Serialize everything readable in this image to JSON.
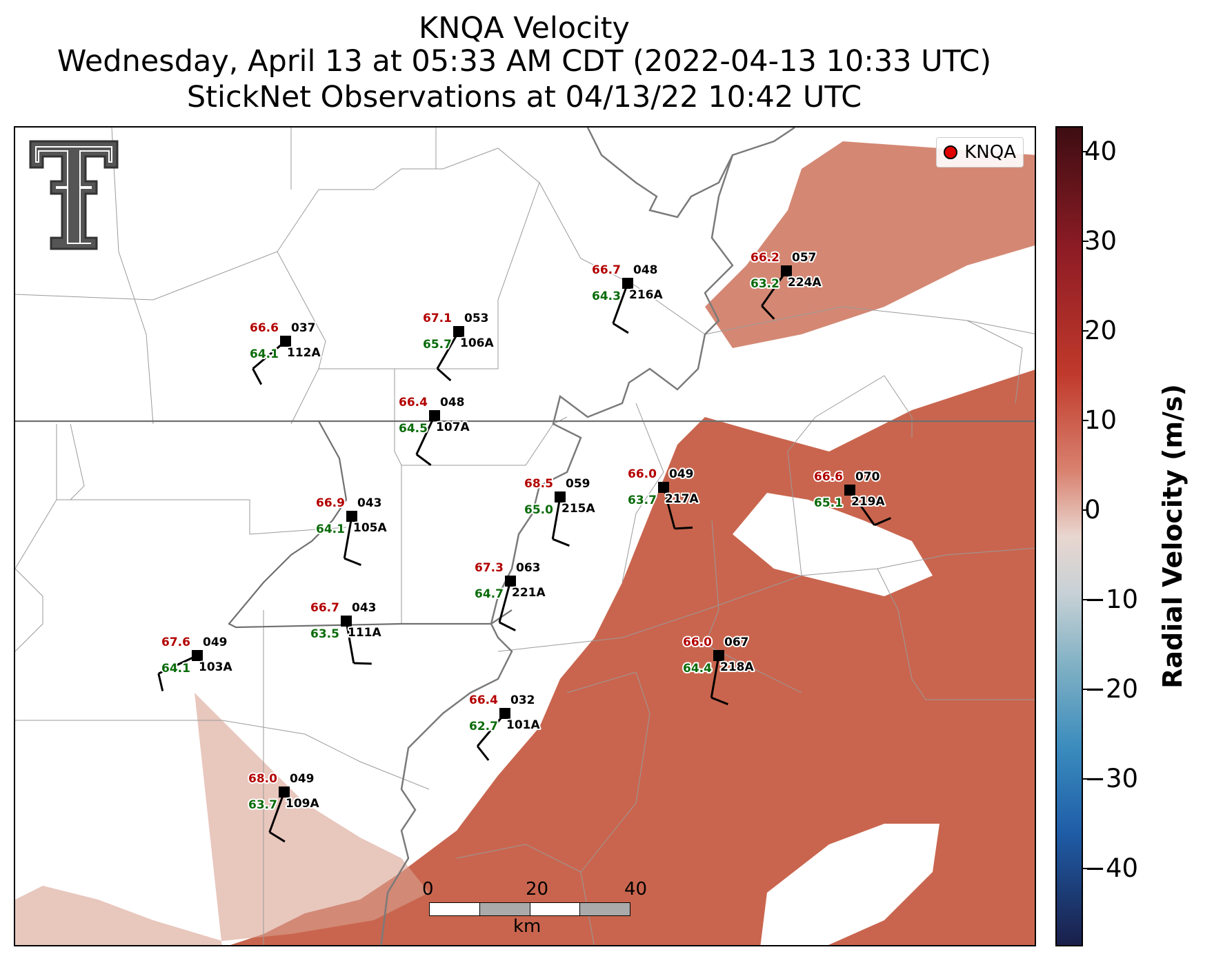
{
  "title": {
    "line1": "KNQA Velocity",
    "line2": "Wednesday, April 13 at 05:33 AM CDT (2022-04-13 10:33 UTC)",
    "line3": "StickNet Observations at 04/13/22 10:42 UTC"
  },
  "legend": {
    "label": "KNQA"
  },
  "colorbar": {
    "label": "Radial Velocity (m/s)",
    "ticks": [
      "40",
      "30",
      "20",
      "10",
      "0",
      "−10",
      "−20",
      "−30",
      "−40"
    ],
    "range": [
      -45,
      45
    ]
  },
  "scale_bar": {
    "ticks": [
      "0",
      "20",
      "40"
    ],
    "unit": "km"
  },
  "stations": [
    {
      "id": "037",
      "name": "112A",
      "temp": "66.6",
      "dew": "64.1"
    },
    {
      "id": "053",
      "name": "106A",
      "temp": "67.1",
      "dew": "65.7"
    },
    {
      "id": "048",
      "name": "216A",
      "temp": "66.7",
      "dew": "64.3"
    },
    {
      "id": "057",
      "name": "224A",
      "temp": "66.2",
      "dew": "63.2"
    },
    {
      "id": "048",
      "name": "107A",
      "temp": "66.4",
      "dew": "64.5"
    },
    {
      "id": "059",
      "name": "215A",
      "temp": "68.5",
      "dew": "65.0"
    },
    {
      "id": "049",
      "name": "217A",
      "temp": "66.0",
      "dew": "63.7"
    },
    {
      "id": "070",
      "name": "219A",
      "temp": "66.6",
      "dew": "65.1"
    },
    {
      "id": "043",
      "name": "105A",
      "temp": "66.9",
      "dew": "64.1"
    },
    {
      "id": "063",
      "name": "221A",
      "temp": "67.3",
      "dew": "64.7"
    },
    {
      "id": "043",
      "name": "111A",
      "temp": "66.7",
      "dew": "63.5"
    },
    {
      "id": "049",
      "name": "103A",
      "temp": "67.6",
      "dew": "64.1"
    },
    {
      "id": "067",
      "name": "218A",
      "temp": "66.0",
      "dew": "64.4"
    },
    {
      "id": "032",
      "name": "101A",
      "temp": "66.4",
      "dew": "62.7"
    },
    {
      "id": "049",
      "name": "109A",
      "temp": "68.0",
      "dew": "63.7"
    }
  ],
  "colors": {
    "radar": "#c8604a",
    "temp": "#b30000",
    "dew": "#0a6b0a",
    "radar_site": "#e00000"
  }
}
